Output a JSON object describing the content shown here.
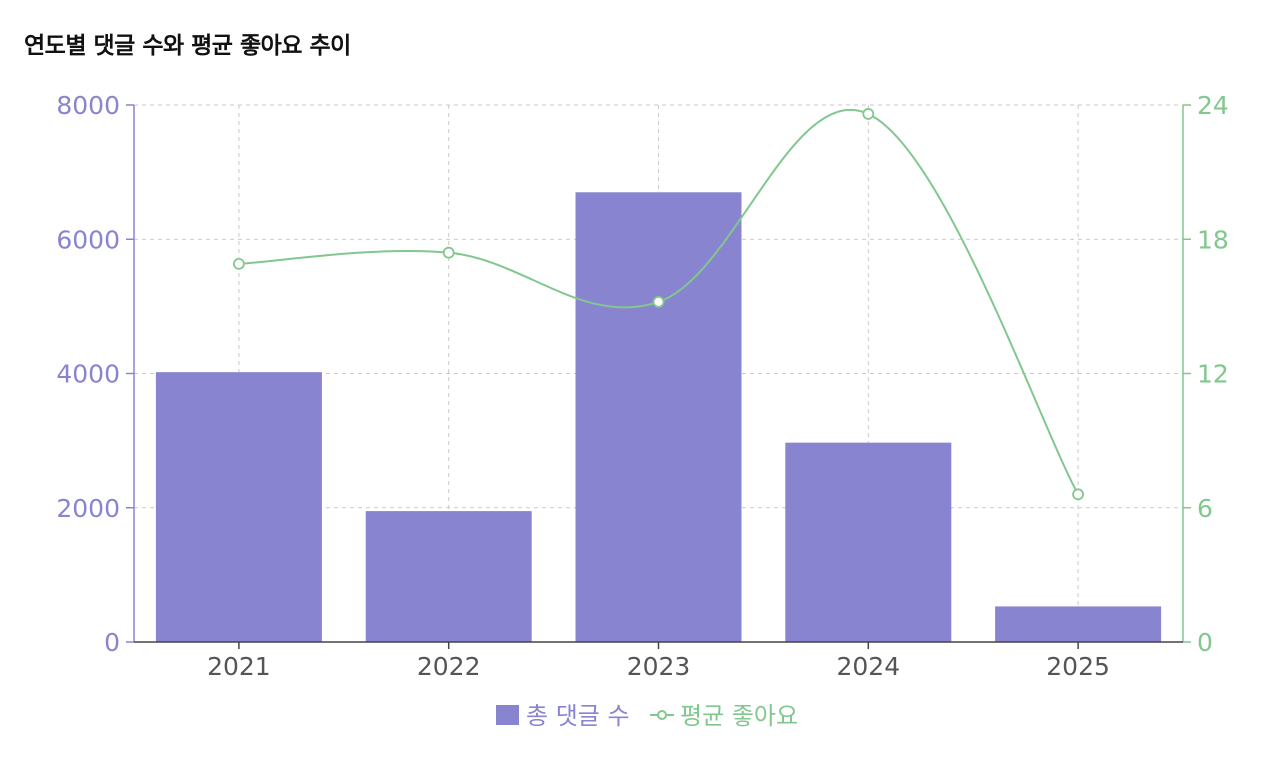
{
  "title": "연도별 댓글 수와 평균 좋아요 추이",
  "colors": {
    "bar": "#8884d0",
    "line": "#82c78f",
    "grid": "#c8c8c8",
    "axis_text": "#555555"
  },
  "chart_data": {
    "type": "bar",
    "categories": [
      "2021",
      "2022",
      "2023",
      "2024",
      "2025"
    ],
    "series": [
      {
        "name": "총 댓글 수",
        "type": "bar",
        "axis": "left",
        "values": [
          4020,
          1950,
          6700,
          2970,
          530
        ]
      },
      {
        "name": "평균 좋아요",
        "type": "line",
        "axis": "right",
        "values": [
          16.9,
          17.4,
          15.2,
          23.6,
          6.6
        ]
      }
    ],
    "y_left": {
      "ylim": [
        0,
        8000
      ],
      "ticks": [
        "0",
        "2000",
        "4000",
        "6000",
        "8000"
      ]
    },
    "y_right": {
      "ylim": [
        0,
        24
      ],
      "ticks": [
        "0",
        "6",
        "12",
        "18",
        "24"
      ]
    },
    "grid": true,
    "legend_position": "bottom-center"
  }
}
